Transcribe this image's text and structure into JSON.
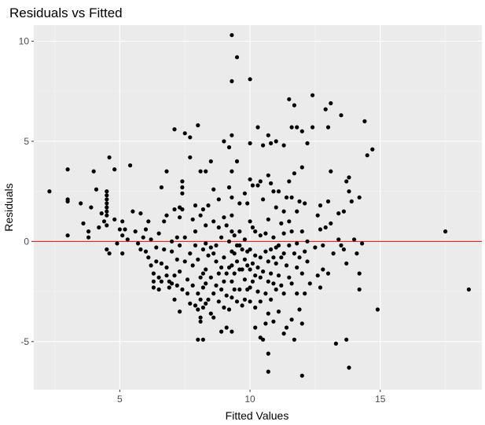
{
  "chart_data": {
    "type": "scatter",
    "title": "Residuals vs Fitted",
    "xlabel": "Fitted Values",
    "ylabel": "Residuals",
    "xlim": [
      1.7,
      18.9
    ],
    "ylim": [
      -7.4,
      10.8
    ],
    "x_ticks": [
      5,
      10,
      15
    ],
    "y_ticks": [
      -5,
      0,
      5,
      10
    ],
    "x_tick_labels": [
      "5",
      "10",
      "15"
    ],
    "y_tick_labels": [
      "-5",
      "0",
      "5",
      "10"
    ],
    "grid": true,
    "reference_line": {
      "y": 0,
      "color": "#ff0000"
    },
    "colors": {
      "panel": "#ebebeb",
      "grid_major": "#ffffff",
      "grid_minor": "#f5f5f5",
      "points": "#000000"
    },
    "points": [
      [
        2.3,
        2.5
      ],
      [
        3.0,
        3.6
      ],
      [
        3.0,
        2.1
      ],
      [
        3.0,
        2.0
      ],
      [
        3.0,
        0.3
      ],
      [
        3.5,
        1.9
      ],
      [
        3.6,
        0.9
      ],
      [
        3.8,
        0.5
      ],
      [
        3.8,
        0.2
      ],
      [
        3.9,
        1.7
      ],
      [
        4.0,
        3.5
      ],
      [
        4.1,
        2.6
      ],
      [
        4.2,
        0.7
      ],
      [
        4.3,
        1.4
      ],
      [
        4.4,
        1.0
      ],
      [
        4.5,
        2.5
      ],
      [
        4.5,
        2.3
      ],
      [
        4.5,
        2.1
      ],
      [
        4.5,
        1.9
      ],
      [
        4.5,
        1.7
      ],
      [
        4.5,
        1.5
      ],
      [
        4.5,
        1.3
      ],
      [
        4.5,
        0.8
      ],
      [
        4.5,
        -0.4
      ],
      [
        4.6,
        4.2
      ],
      [
        4.6,
        -0.6
      ],
      [
        4.8,
        3.6
      ],
      [
        4.8,
        1.1
      ],
      [
        4.9,
        -0.1
      ],
      [
        5.0,
        0.6
      ],
      [
        5.1,
        1.0
      ],
      [
        5.1,
        0.3
      ],
      [
        5.1,
        -0.6
      ],
      [
        5.2,
        0.6
      ],
      [
        5.3,
        0.1
      ],
      [
        5.4,
        3.8
      ],
      [
        5.5,
        1.5
      ],
      [
        5.6,
        0.5
      ],
      [
        5.7,
        -0.1
      ],
      [
        5.8,
        1.4
      ],
      [
        5.8,
        -0.4
      ],
      [
        5.9,
        0.2
      ],
      [
        6.0,
        0.6
      ],
      [
        6.0,
        -0.5
      ],
      [
        6.1,
        1.0
      ],
      [
        6.1,
        -0.8
      ],
      [
        6.2,
        -1.2
      ],
      [
        6.2,
        0.1
      ],
      [
        6.3,
        -2.3
      ],
      [
        6.3,
        -1.6
      ],
      [
        6.3,
        -2.0
      ],
      [
        6.4,
        -0.3
      ],
      [
        6.4,
        -1.0
      ],
      [
        6.5,
        0.4
      ],
      [
        6.5,
        -2.4
      ],
      [
        6.5,
        -1.8
      ],
      [
        6.6,
        2.7
      ],
      [
        6.6,
        -1.1
      ],
      [
        6.6,
        -2.0
      ],
      [
        6.7,
        1.0
      ],
      [
        6.7,
        -0.4
      ],
      [
        6.8,
        3.5
      ],
      [
        6.8,
        1.3
      ],
      [
        6.8,
        -1.3
      ],
      [
        6.8,
        -1.7
      ],
      [
        6.9,
        -2.3
      ],
      [
        6.9,
        -2.0
      ],
      [
        7.0,
        0.0
      ],
      [
        7.0,
        -0.5
      ],
      [
        7.0,
        -2.1
      ],
      [
        7.1,
        5.6
      ],
      [
        7.1,
        1.6
      ],
      [
        7.1,
        -1.7
      ],
      [
        7.1,
        -2.9
      ],
      [
        7.2,
        0.2
      ],
      [
        7.2,
        -0.9
      ],
      [
        7.2,
        -2.2
      ],
      [
        7.3,
        1.7
      ],
      [
        7.3,
        1.2
      ],
      [
        7.3,
        -0.2
      ],
      [
        7.3,
        -1.5
      ],
      [
        7.3,
        -3.5
      ],
      [
        7.4,
        3.0
      ],
      [
        7.4,
        2.7
      ],
      [
        7.4,
        2.4
      ],
      [
        7.4,
        1.6
      ],
      [
        7.4,
        -2.4
      ],
      [
        7.5,
        5.4
      ],
      [
        7.5,
        0.2
      ],
      [
        7.5,
        -1.0
      ],
      [
        7.6,
        -1.9
      ],
      [
        7.6,
        -2.6
      ],
      [
        7.7,
        5.2
      ],
      [
        7.7,
        4.2
      ],
      [
        7.7,
        -0.6
      ],
      [
        7.7,
        -3.1
      ],
      [
        7.8,
        1.1
      ],
      [
        7.8,
        -1.2
      ],
      [
        7.8,
        -2.2
      ],
      [
        7.9,
        1.8
      ],
      [
        7.9,
        0.5
      ],
      [
        7.9,
        -0.2
      ],
      [
        7.9,
        -3.2
      ],
      [
        8.0,
        5.8
      ],
      [
        8.0,
        -0.9
      ],
      [
        8.0,
        -2.6
      ],
      [
        8.0,
        -3.4
      ],
      [
        8.0,
        -4.9
      ],
      [
        8.1,
        3.5
      ],
      [
        8.1,
        1.3
      ],
      [
        8.1,
        -1.8
      ],
      [
        8.1,
        -2.9
      ],
      [
        8.1,
        -3.8
      ],
      [
        8.1,
        -4.0
      ],
      [
        8.2,
        1.6
      ],
      [
        8.2,
        -0.4
      ],
      [
        8.2,
        -1.6
      ],
      [
        8.2,
        -2.3
      ],
      [
        8.2,
        -3.3
      ],
      [
        8.2,
        -4.9
      ],
      [
        8.3,
        3.5
      ],
      [
        8.3,
        0.8
      ],
      [
        8.3,
        -0.1
      ],
      [
        8.3,
        -1.4
      ],
      [
        8.3,
        -2.1
      ],
      [
        8.3,
        -3.1
      ],
      [
        8.4,
        1.8
      ],
      [
        8.4,
        -0.7
      ],
      [
        8.4,
        -2.9
      ],
      [
        8.5,
        4.0
      ],
      [
        8.5,
        -0.3
      ],
      [
        8.5,
        -1.8
      ],
      [
        8.5,
        -3.6
      ],
      [
        8.6,
        2.6
      ],
      [
        8.6,
        1.0
      ],
      [
        8.6,
        -0.6
      ],
      [
        8.6,
        -2.6
      ],
      [
        8.6,
        -3.8
      ],
      [
        8.7,
        -0.2
      ],
      [
        8.7,
        -1.0
      ],
      [
        8.7,
        -2.2
      ],
      [
        8.8,
        2.1
      ],
      [
        8.8,
        0.7
      ],
      [
        8.8,
        -1.6
      ],
      [
        8.8,
        -3.0
      ],
      [
        8.9,
        0.2
      ],
      [
        8.9,
        -1.3
      ],
      [
        8.9,
        -2.4
      ],
      [
        8.9,
        -4.5
      ],
      [
        9.0,
        5.0
      ],
      [
        9.0,
        1.2
      ],
      [
        9.0,
        -0.8
      ],
      [
        9.0,
        -2.0
      ],
      [
        9.0,
        -3.3
      ],
      [
        9.1,
        0.8
      ],
      [
        9.1,
        -1.6
      ],
      [
        9.1,
        -2.7
      ],
      [
        9.1,
        -4.3
      ],
      [
        9.2,
        4.7
      ],
      [
        9.2,
        2.7
      ],
      [
        9.2,
        0.0
      ],
      [
        9.2,
        -1.3
      ],
      [
        9.2,
        -3.4
      ],
      [
        9.3,
        10.3
      ],
      [
        9.3,
        8.0
      ],
      [
        9.3,
        5.3
      ],
      [
        9.3,
        3.5
      ],
      [
        9.3,
        2.2
      ],
      [
        9.3,
        1.3
      ],
      [
        9.3,
        0.5
      ],
      [
        9.3,
        -0.5
      ],
      [
        9.3,
        -1.2
      ],
      [
        9.3,
        -2.0
      ],
      [
        9.3,
        -2.8
      ],
      [
        9.3,
        -4.5
      ],
      [
        9.4,
        0.3
      ],
      [
        9.4,
        -0.6
      ],
      [
        9.4,
        -1.6
      ],
      [
        9.4,
        -2.4
      ],
      [
        9.5,
        9.2
      ],
      [
        9.5,
        4.0
      ],
      [
        9.5,
        -0.2
      ],
      [
        9.5,
        -1.0
      ],
      [
        9.5,
        -3.0
      ],
      [
        9.6,
        1.9
      ],
      [
        9.6,
        0.5
      ],
      [
        9.6,
        -0.2
      ],
      [
        9.6,
        -1.4
      ],
      [
        9.6,
        -2.4
      ],
      [
        9.7,
        -0.4
      ],
      [
        9.7,
        -1.4
      ],
      [
        9.7,
        -3.2
      ],
      [
        9.8,
        2.4
      ],
      [
        9.8,
        0.1
      ],
      [
        9.8,
        -0.9
      ],
      [
        9.8,
        -1.9
      ],
      [
        9.8,
        -2.9
      ],
      [
        9.9,
        1.9
      ],
      [
        9.9,
        -0.5
      ],
      [
        9.9,
        -1.2
      ],
      [
        9.9,
        -2.4
      ],
      [
        10.0,
        8.1
      ],
      [
        10.0,
        4.9
      ],
      [
        10.0,
        3.1
      ],
      [
        10.0,
        1.0
      ],
      [
        10.0,
        -0.4
      ],
      [
        10.0,
        -1.4
      ],
      [
        10.0,
        -2.3
      ],
      [
        10.0,
        -3.0
      ],
      [
        10.1,
        2.8
      ],
      [
        10.1,
        0.7
      ],
      [
        10.1,
        -1.1
      ],
      [
        10.1,
        -2.0
      ],
      [
        10.2,
        0.5
      ],
      [
        10.2,
        -0.7
      ],
      [
        10.2,
        -1.7
      ],
      [
        10.2,
        -3.3
      ],
      [
        10.2,
        -4.3
      ],
      [
        10.3,
        5.7
      ],
      [
        10.3,
        2.8
      ],
      [
        10.3,
        -1.3
      ],
      [
        10.3,
        -2.5
      ],
      [
        10.4,
        3.0
      ],
      [
        10.4,
        0.3
      ],
      [
        10.4,
        -0.8
      ],
      [
        10.4,
        -1.8
      ],
      [
        10.4,
        -3.0
      ],
      [
        10.4,
        -4.8
      ],
      [
        10.5,
        4.8
      ],
      [
        10.5,
        2.1
      ],
      [
        10.5,
        -1.5
      ],
      [
        10.5,
        -4.9
      ],
      [
        10.6,
        0.4
      ],
      [
        10.6,
        -0.5
      ],
      [
        10.6,
        -2.6
      ],
      [
        10.6,
        -4.1
      ],
      [
        10.7,
        5.3
      ],
      [
        10.7,
        3.3
      ],
      [
        10.7,
        1.1
      ],
      [
        10.7,
        -1.0
      ],
      [
        10.7,
        -2.0
      ],
      [
        10.7,
        -3.6
      ],
      [
        10.7,
        -5.6
      ],
      [
        10.7,
        -6.5
      ],
      [
        10.8,
        4.9
      ],
      [
        10.8,
        2.9
      ],
      [
        10.8,
        -0.4
      ],
      [
        10.8,
        -1.6
      ],
      [
        10.8,
        -2.9
      ],
      [
        10.9,
        2.5
      ],
      [
        10.9,
        0.2
      ],
      [
        10.9,
        -0.8
      ],
      [
        10.9,
        -2.1
      ],
      [
        10.9,
        -4.0
      ],
      [
        11.0,
        5.0
      ],
      [
        11.0,
        1.7
      ],
      [
        11.0,
        -0.3
      ],
      [
        11.0,
        -1.1
      ],
      [
        11.0,
        -2.4
      ],
      [
        11.1,
        2.5
      ],
      [
        11.1,
        -0.2
      ],
      [
        11.1,
        -1.7
      ],
      [
        11.1,
        -3.5
      ],
      [
        11.2,
        0.9
      ],
      [
        11.2,
        -0.8
      ],
      [
        11.2,
        -2.2
      ],
      [
        11.3,
        4.8
      ],
      [
        11.3,
        1.5
      ],
      [
        11.3,
        0.4
      ],
      [
        11.3,
        -0.6
      ],
      [
        11.3,
        -2.6
      ],
      [
        11.3,
        -4.6
      ],
      [
        11.4,
        2.2
      ],
      [
        11.4,
        -1.2
      ],
      [
        11.4,
        -4.3
      ],
      [
        11.5,
        7.1
      ],
      [
        11.5,
        3.0
      ],
      [
        11.5,
        1.0
      ],
      [
        11.5,
        -0.2
      ],
      [
        11.5,
        -1.8
      ],
      [
        11.6,
        5.7
      ],
      [
        11.6,
        2.2
      ],
      [
        11.6,
        0.5
      ],
      [
        11.6,
        -2.1
      ],
      [
        11.6,
        -3.9
      ],
      [
        11.7,
        6.8
      ],
      [
        11.7,
        3.4
      ],
      [
        11.7,
        -0.6
      ],
      [
        11.7,
        -4.9
      ],
      [
        11.8,
        5.7
      ],
      [
        11.8,
        1.5
      ],
      [
        11.8,
        -0.1
      ],
      [
        11.8,
        -1.3
      ],
      [
        11.8,
        -2.6
      ],
      [
        11.9,
        2.0
      ],
      [
        11.9,
        -0.8
      ],
      [
        11.9,
        -3.4
      ],
      [
        12.0,
        5.5
      ],
      [
        12.0,
        3.7
      ],
      [
        12.0,
        0.5
      ],
      [
        12.0,
        -1.6
      ],
      [
        12.0,
        -4.1
      ],
      [
        12.0,
        -6.7
      ],
      [
        12.1,
        1.9
      ],
      [
        12.1,
        -0.5
      ],
      [
        12.1,
        -2.6
      ],
      [
        12.2,
        4.9
      ],
      [
        12.2,
        0.0
      ],
      [
        12.2,
        -1.0
      ],
      [
        12.3,
        -2.1
      ],
      [
        12.4,
        7.3
      ],
      [
        12.4,
        5.7
      ],
      [
        12.5,
        -0.3
      ],
      [
        12.6,
        1.3
      ],
      [
        12.6,
        -1.7
      ],
      [
        12.7,
        1.8
      ],
      [
        12.7,
        0.6
      ],
      [
        12.7,
        -2.3
      ],
      [
        12.8,
        -0.2
      ],
      [
        12.8,
        -1.4
      ],
      [
        12.9,
        6.6
      ],
      [
        12.9,
        0.7
      ],
      [
        13.0,
        5.7
      ],
      [
        13.0,
        2.0
      ],
      [
        13.0,
        -1.6
      ],
      [
        13.1,
        6.9
      ],
      [
        13.1,
        3.5
      ],
      [
        13.1,
        0.9
      ],
      [
        13.2,
        -0.6
      ],
      [
        13.3,
        -5.1
      ],
      [
        13.4,
        1.4
      ],
      [
        13.4,
        0.1
      ],
      [
        13.5,
        6.3
      ],
      [
        13.5,
        -0.2
      ],
      [
        13.6,
        1.5
      ],
      [
        13.6,
        -0.4
      ],
      [
        13.7,
        3.0
      ],
      [
        13.7,
        -1.1
      ],
      [
        13.7,
        -4.9
      ],
      [
        13.8,
        3.2
      ],
      [
        13.8,
        2.5
      ],
      [
        13.8,
        -6.3
      ],
      [
        13.9,
        2.0
      ],
      [
        14.0,
        0.1
      ],
      [
        14.1,
        -0.6
      ],
      [
        14.2,
        2.2
      ],
      [
        14.2,
        -1.6
      ],
      [
        14.2,
        -2.4
      ],
      [
        14.3,
        -0.1
      ],
      [
        14.4,
        6.0
      ],
      [
        14.5,
        4.3
      ],
      [
        14.7,
        4.6
      ],
      [
        14.9,
        -3.4
      ],
      [
        17.5,
        0.5
      ],
      [
        18.4,
        -2.4
      ]
    ]
  }
}
